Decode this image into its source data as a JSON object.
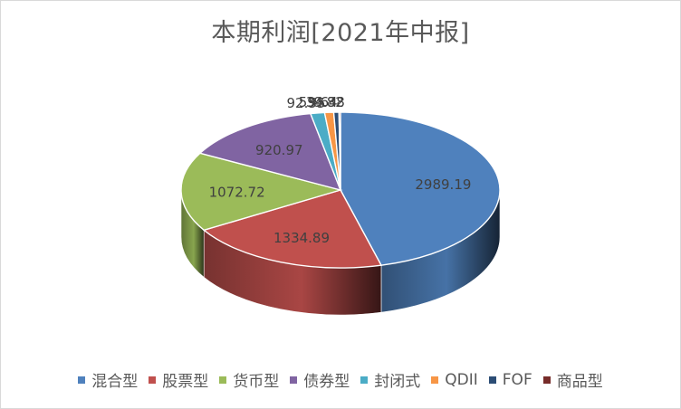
{
  "chart_data": {
    "type": "pie",
    "title": "本期利润[2021年中报]",
    "style": "3d",
    "legend_position": "bottom",
    "categories": [
      "混合型",
      "股票型",
      "货币型",
      "债券型",
      "封闭式",
      "QDII",
      "FOF",
      "商品型"
    ],
    "values": [
      2989.19,
      1334.89,
      1072.72,
      920.97,
      92.55,
      59.64,
      34.38,
      9.82
    ],
    "value_labels": [
      "2989.19",
      "1334.89",
      "1072.72",
      "920.97",
      "92.55",
      "59.64",
      "34.38",
      "9.82"
    ],
    "colors": [
      "#4f81bd",
      "#c0504d",
      "#9bbb59",
      "#8064a2",
      "#4bacc6",
      "#f79646",
      "#2c4d75",
      "#772c2a"
    ]
  }
}
